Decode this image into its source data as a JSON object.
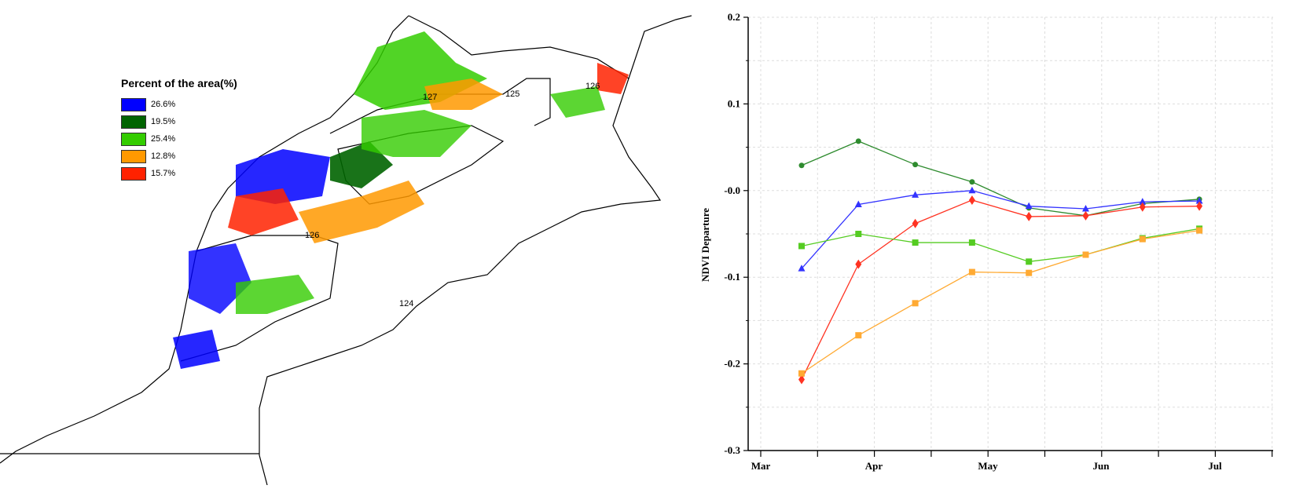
{
  "map": {
    "legend_title": "Percent of the area(%)",
    "legend": [
      {
        "label": "26.6%",
        "color": "#0000ff"
      },
      {
        "label": "19.5%",
        "color": "#006400"
      },
      {
        "label": "25.4%",
        "color": "#33cc00"
      },
      {
        "label": "12.8%",
        "color": "#ff9900"
      },
      {
        "label": "15.7%",
        "color": "#ff2200"
      }
    ],
    "region_labels": [
      "127",
      "125",
      "126",
      "126",
      "124"
    ]
  },
  "chart_data": {
    "type": "line",
    "title": "",
    "xlabel": "",
    "ylabel": "NDVI Departure",
    "ylim": [
      -0.3,
      0.2
    ],
    "yticks": [
      "0.2",
      "0.1",
      "-0.0",
      "-0.1",
      "-0.2",
      "-0.3"
    ],
    "xticks": [
      "Mar",
      "Apr",
      "May",
      "Jun",
      "Jul"
    ],
    "grid": true,
    "x": [
      0,
      1,
      2,
      3,
      4,
      5,
      6,
      7
    ],
    "series": [
      {
        "color": "#2e8b2e",
        "marker": "circle",
        "values": [
          0.029,
          0.057,
          0.03,
          0.01,
          -0.02,
          -0.029,
          -0.015,
          -0.01
        ]
      },
      {
        "color": "#3333ff",
        "marker": "triangle",
        "values": [
          -0.09,
          -0.016,
          -0.005,
          0.0,
          -0.018,
          -0.021,
          -0.013,
          -0.012
        ]
      },
      {
        "color": "#ff3322",
        "marker": "diamond",
        "values": [
          -0.218,
          -0.085,
          -0.038,
          -0.011,
          -0.03,
          -0.029,
          -0.019,
          -0.018
        ]
      },
      {
        "color": "#55cc22",
        "marker": "square",
        "values": [
          -0.064,
          -0.05,
          -0.06,
          -0.06,
          -0.082,
          -0.074,
          -0.055,
          -0.044
        ]
      },
      {
        "color": "#ffaa33",
        "marker": "square",
        "values": [
          -0.211,
          -0.167,
          -0.13,
          -0.094,
          -0.095,
          -0.074,
          -0.056,
          -0.046
        ]
      }
    ]
  }
}
